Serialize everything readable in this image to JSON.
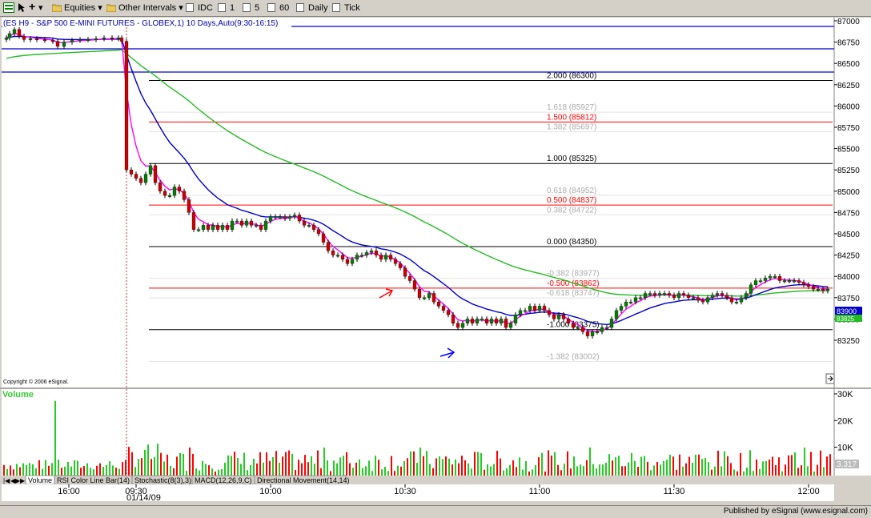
{
  "toolbar": {
    "equities": "Equities",
    "other_intervals": "Other Intervals",
    "idc": "IDC",
    "i1": "1",
    "i5": "5",
    "i60": "60",
    "daily": "Daily",
    "tick": "Tick"
  },
  "chart": {
    "title": "(ES H9 - S&P 500 E-MINI FUTURES - GLOBEX,1) 10 Days,Auto(9:30-16:15)",
    "copyright": "Copyright © 2006 eSignal.",
    "price_axis": [
      "87000",
      "86750",
      "86500",
      "86250",
      "86000",
      "85750",
      "85500",
      "85250",
      "85000",
      "84750",
      "84500",
      "84250",
      "84000",
      "83750",
      "83500",
      "83250"
    ],
    "last_price": "83900",
    "last_price2": "83825",
    "fib_levels": [
      {
        "label": "2.000 (86300)",
        "color": "#000000"
      },
      {
        "label": "1.618 (85927)",
        "color": "#aaaaaa"
      },
      {
        "label": "1.500 (85812)",
        "color": "#ff0000"
      },
      {
        "label": "1.382 (85697)",
        "color": "#aaaaaa"
      },
      {
        "label": "1.000 (85325)",
        "color": "#000000"
      },
      {
        "label": "0.618 (84952)",
        "color": "#aaaaaa"
      },
      {
        "label": "0.500 (84837)",
        "color": "#ff0000"
      },
      {
        "label": "0.382 (84722)",
        "color": "#aaaaaa"
      },
      {
        "label": "0.000 (84350)",
        "color": "#000000"
      },
      {
        "label": "-0.382 (83977)",
        "color": "#aaaaaa"
      },
      {
        "label": "-0.500 (83862)",
        "color": "#ff0000"
      },
      {
        "label": "-0.618 (83747)",
        "color": "#aaaaaa"
      },
      {
        "label": "-1.000 (83375)",
        "color": "#000000"
      },
      {
        "label": "-1.382 (83002)",
        "color": "#aaaaaa"
      }
    ],
    "volume_title": "Volume",
    "volume_axis": [
      "30K",
      "20K",
      "10K"
    ],
    "volume_last": "3,317",
    "time_labels": [
      "16:00",
      "09:30",
      "10:00",
      "10:30",
      "11:00",
      "11:30",
      "12:00"
    ],
    "date_label": "01/14/09"
  },
  "tabs": [
    "Volume",
    "RSI Color Line Bar(14)",
    "Stochastic(8(3),3)",
    "MACD(12,26,9,C)",
    "Directional Movement(14,14)"
  ],
  "footer": {
    "published": "Published by eSignal (www.esignal.com)"
  },
  "colors": {
    "price_up": "#008000",
    "price_down": "#cc0000",
    "ema_fast": "#ff00ff",
    "ema_mid": "#0000cc",
    "ema_slow": "#22bb22",
    "band": "#0000cc"
  }
}
